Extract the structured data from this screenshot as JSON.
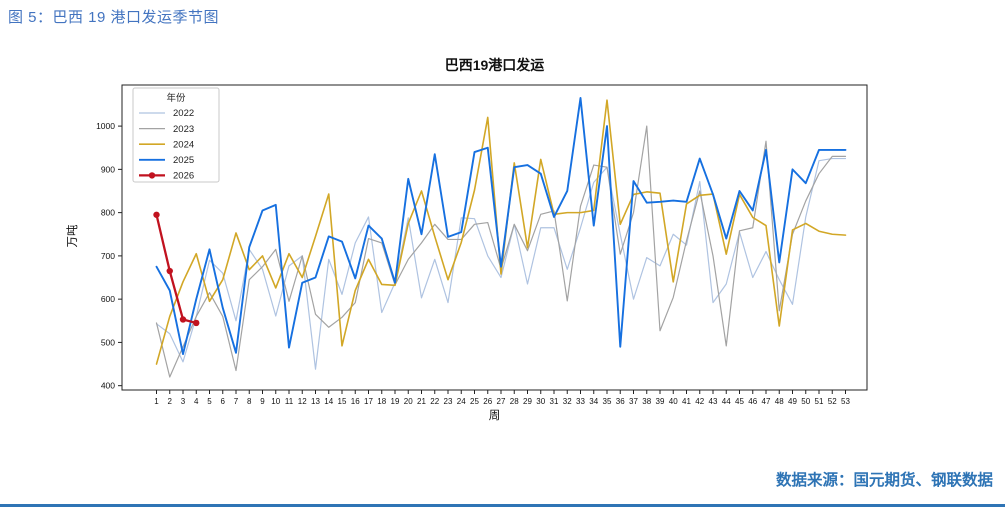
{
  "figure": {
    "caption": "图 5：巴西 19 港口发运季节图",
    "source": "数据来源：国元期货、钢联数据"
  },
  "chart_data": {
    "type": "line",
    "title": "巴西19港口发运",
    "xlabel": "周",
    "ylabel": "万吨",
    "legend_title": "年份",
    "legend_position": "upper left",
    "grid": false,
    "x_range": [
      1,
      53
    ],
    "ylim": [
      390,
      1095
    ],
    "yticks": [
      400,
      500,
      600,
      700,
      800,
      900,
      1000
    ],
    "xticks": [
      1,
      2,
      3,
      4,
      5,
      6,
      7,
      8,
      9,
      10,
      11,
      12,
      13,
      14,
      15,
      16,
      17,
      18,
      19,
      20,
      21,
      22,
      23,
      24,
      25,
      26,
      27,
      28,
      29,
      30,
      31,
      32,
      33,
      34,
      35,
      36,
      37,
      38,
      39,
      40,
      41,
      42,
      43,
      44,
      45,
      46,
      47,
      48,
      49,
      50,
      51,
      52,
      53
    ],
    "series": [
      {
        "name": "2022",
        "color": "#afc3e1",
        "width": 1.2,
        "marker": false,
        "values": [
          543,
          520,
          455,
          560,
          690,
          660,
          550,
          715,
          669,
          561,
          677,
          700,
          438,
          692,
          611,
          730,
          790,
          569,
          638,
          788,
          603,
          692,
          592,
          788,
          786,
          700,
          650,
          773,
          635,
          765,
          765,
          669,
          765,
          870,
          905,
          750,
          600,
          696,
          677,
          750,
          725,
          872,
          592,
          635,
          755,
          650,
          710,
          645,
          588,
          790,
          920,
          925,
          925
        ]
      },
      {
        "name": "2023",
        "color": "#a3a3a3",
        "width": 1.2,
        "marker": false,
        "values": [
          545,
          420,
          490,
          560,
          615,
          560,
          435,
          645,
          675,
          715,
          595,
          700,
          565,
          535,
          558,
          592,
          740,
          730,
          633,
          692,
          730,
          773,
          738,
          738,
          773,
          777,
          670,
          773,
          712,
          796,
          804,
          596,
          815,
          910,
          905,
          704,
          800,
          1000,
          527,
          604,
          735,
          850,
          700,
          492,
          758,
          765,
          965,
          573,
          750,
          827,
          890,
          930,
          930
        ]
      },
      {
        "name": "2024",
        "color": "#d2a726",
        "width": 1.6,
        "marker": false,
        "values": [
          450,
          560,
          640,
          705,
          595,
          645,
          753,
          668,
          700,
          626,
          705,
          650,
          745,
          843,
          492,
          620,
          692,
          634,
          632,
          775,
          850,
          745,
          645,
          731,
          852,
          1020,
          658,
          915,
          719,
          923,
          796,
          800,
          800,
          805,
          1060,
          773,
          842,
          848,
          845,
          640,
          820,
          840,
          843,
          704,
          842,
          789,
          770,
          538,
          760,
          775,
          757,
          750,
          748
        ]
      },
      {
        "name": "2025",
        "color": "#1670e0",
        "width": 1.9,
        "marker": false,
        "values": [
          675,
          620,
          473,
          600,
          715,
          580,
          476,
          720,
          805,
          818,
          488,
          638,
          650,
          745,
          733,
          648,
          770,
          740,
          638,
          878,
          750,
          935,
          744,
          755,
          940,
          950,
          675,
          905,
          910,
          890,
          790,
          850,
          1065,
          770,
          1000,
          490,
          873,
          823,
          825,
          828,
          825,
          925,
          842,
          740,
          850,
          805,
          945,
          685,
          900,
          868,
          945,
          945,
          945
        ]
      },
      {
        "name": "2026",
        "color": "#c1121f",
        "width": 2.3,
        "marker": true,
        "values": [
          795,
          665,
          553,
          545
        ]
      }
    ]
  }
}
